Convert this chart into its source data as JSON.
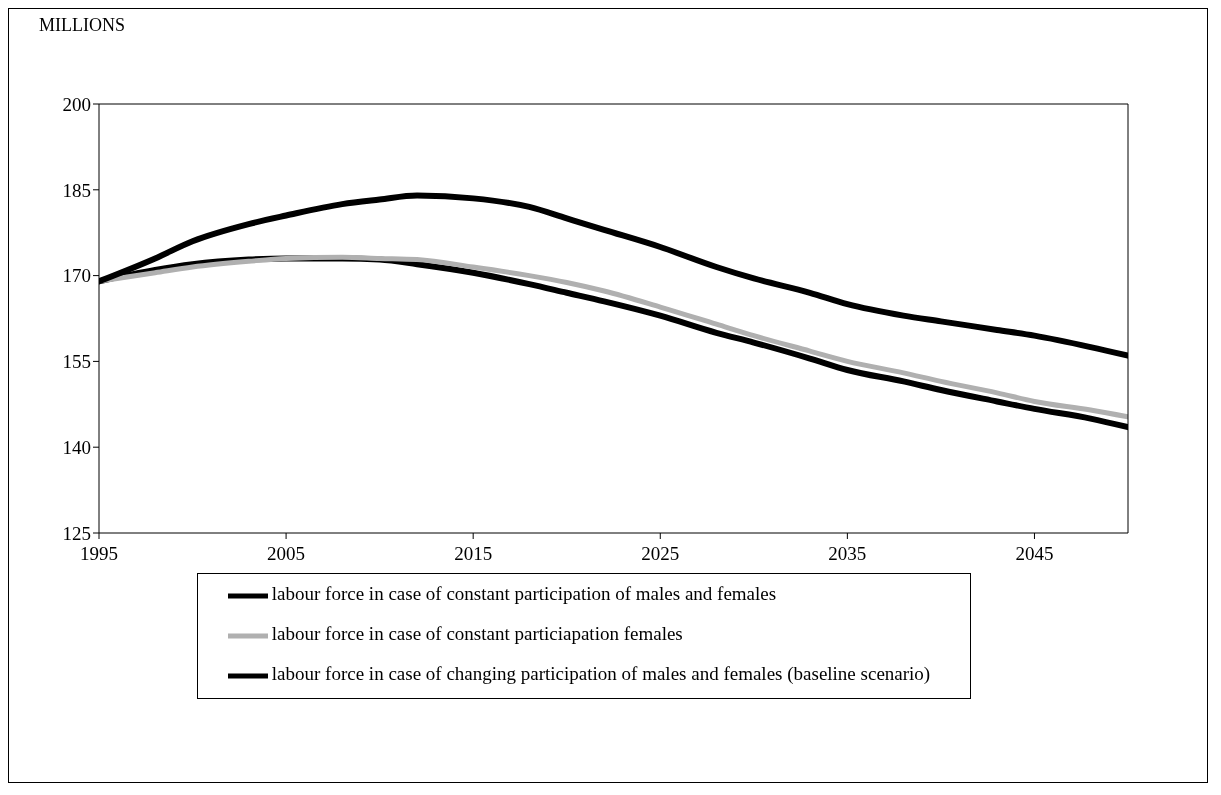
{
  "chart_data": {
    "type": "line",
    "ylabel": "MILLIONS",
    "x": [
      1995,
      1998,
      2000,
      2003,
      2005,
      2008,
      2010,
      2012,
      2015,
      2018,
      2020,
      2022,
      2025,
      2028,
      2030,
      2033,
      2035,
      2038,
      2040,
      2043,
      2045,
      2048,
      2050
    ],
    "series": [
      {
        "name": "labour force in case of constant participation of males and females",
        "color": "#000000",
        "values": [
          169,
          171,
          172,
          172.8,
          173,
          173,
          172.8,
          172,
          170.5,
          168.5,
          167,
          165.5,
          163,
          160,
          158.3,
          155.5,
          153.5,
          151.5,
          150,
          148,
          146.7,
          145,
          143.5
        ]
      },
      {
        "name": "labour force in case of constant particiapation females",
        "color": "#b0b0b0",
        "values": [
          169,
          170.5,
          171.5,
          172.5,
          173,
          173.2,
          173,
          172.8,
          171.5,
          170,
          168.8,
          167.3,
          164.5,
          161.5,
          159.5,
          156.8,
          155,
          153,
          151.5,
          149.5,
          148,
          146.5,
          145.3
        ]
      },
      {
        "name": "labour force in case of changing participation of males and females (baseline scenario)",
        "color": "#000000",
        "values": [
          169,
          173,
          176,
          179,
          180.5,
          182.5,
          183.3,
          184,
          183.5,
          182,
          180,
          178,
          175,
          171.5,
          169.5,
          167,
          165,
          163,
          162,
          160.5,
          159.5,
          157.5,
          156
        ]
      }
    ],
    "xlim": [
      1995,
      2050
    ],
    "xticks": [
      1995,
      2005,
      2015,
      2025,
      2035,
      2045
    ],
    "ylim": [
      125,
      200
    ],
    "yticks": [
      125,
      140,
      155,
      170,
      185,
      200
    ],
    "grid": false,
    "legend": "bottom",
    "marker": "none",
    "line_style": "solid"
  }
}
